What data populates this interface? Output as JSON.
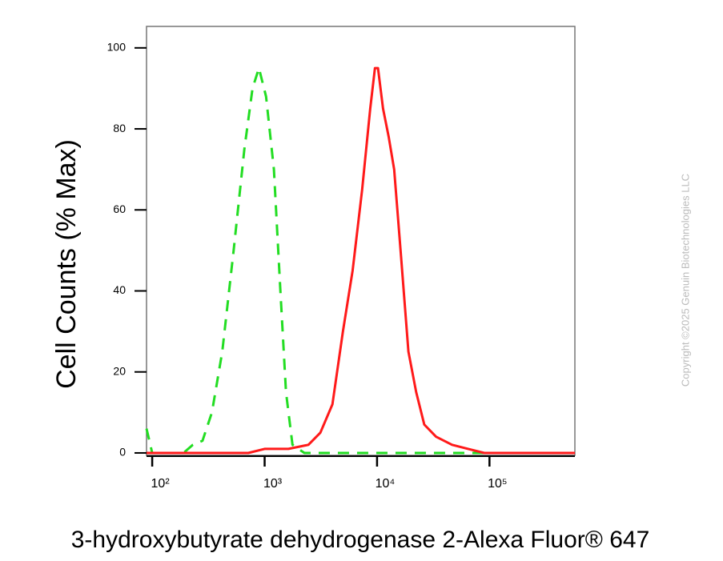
{
  "chart_data": {
    "type": "line",
    "y_label": "Cell Counts (% Max)",
    "x_label": "3-hydroxybutyrate dehydrogenase 2-Alexa Fluor® 647",
    "copyright": "Copyright ©2025 Genuin Biotechnologies LLC",
    "xscale": "log",
    "xlim": [
      89,
      575000
    ],
    "xticks": [
      {
        "value": 100,
        "label": "10²"
      },
      {
        "value": 1000,
        "label": "10³"
      },
      {
        "value": 10000,
        "label": "10⁴"
      },
      {
        "value": 100000,
        "label": "10⁵"
      }
    ],
    "ylim": [
      -0.6,
      105.3
    ],
    "yticks": [
      0,
      20,
      40,
      60,
      80,
      100
    ],
    "series": [
      {
        "color": "#22dd22",
        "dash": true,
        "x": [
          89,
          100,
          190,
          230,
          280,
          340,
          420,
          530,
          660,
          780,
          890,
          1030,
          1210,
          1380,
          1550,
          1770,
          2260,
          575000
        ],
        "values": [
          6,
          0,
          0,
          2,
          3,
          10,
          25,
          50,
          75,
          90,
          95,
          88,
          70,
          40,
          15,
          2,
          0,
          0
        ]
      },
      {
        "color": "#ff1a1a",
        "dash": false,
        "x": [
          89,
          716,
          1000,
          1630,
          2450,
          3130,
          4010,
          4970,
          6060,
          7370,
          8700,
          9580,
          10200,
          11300,
          12700,
          14200,
          16200,
          19000,
          22300,
          26300,
          33500,
          46500,
          64600,
          90000,
          575000
        ],
        "values": [
          0,
          0,
          1,
          1,
          2,
          5,
          12,
          30,
          45,
          65,
          85,
          95,
          95,
          85,
          78,
          70,
          50,
          25,
          15,
          7,
          4,
          2,
          1,
          0,
          0
        ]
      }
    ]
  }
}
